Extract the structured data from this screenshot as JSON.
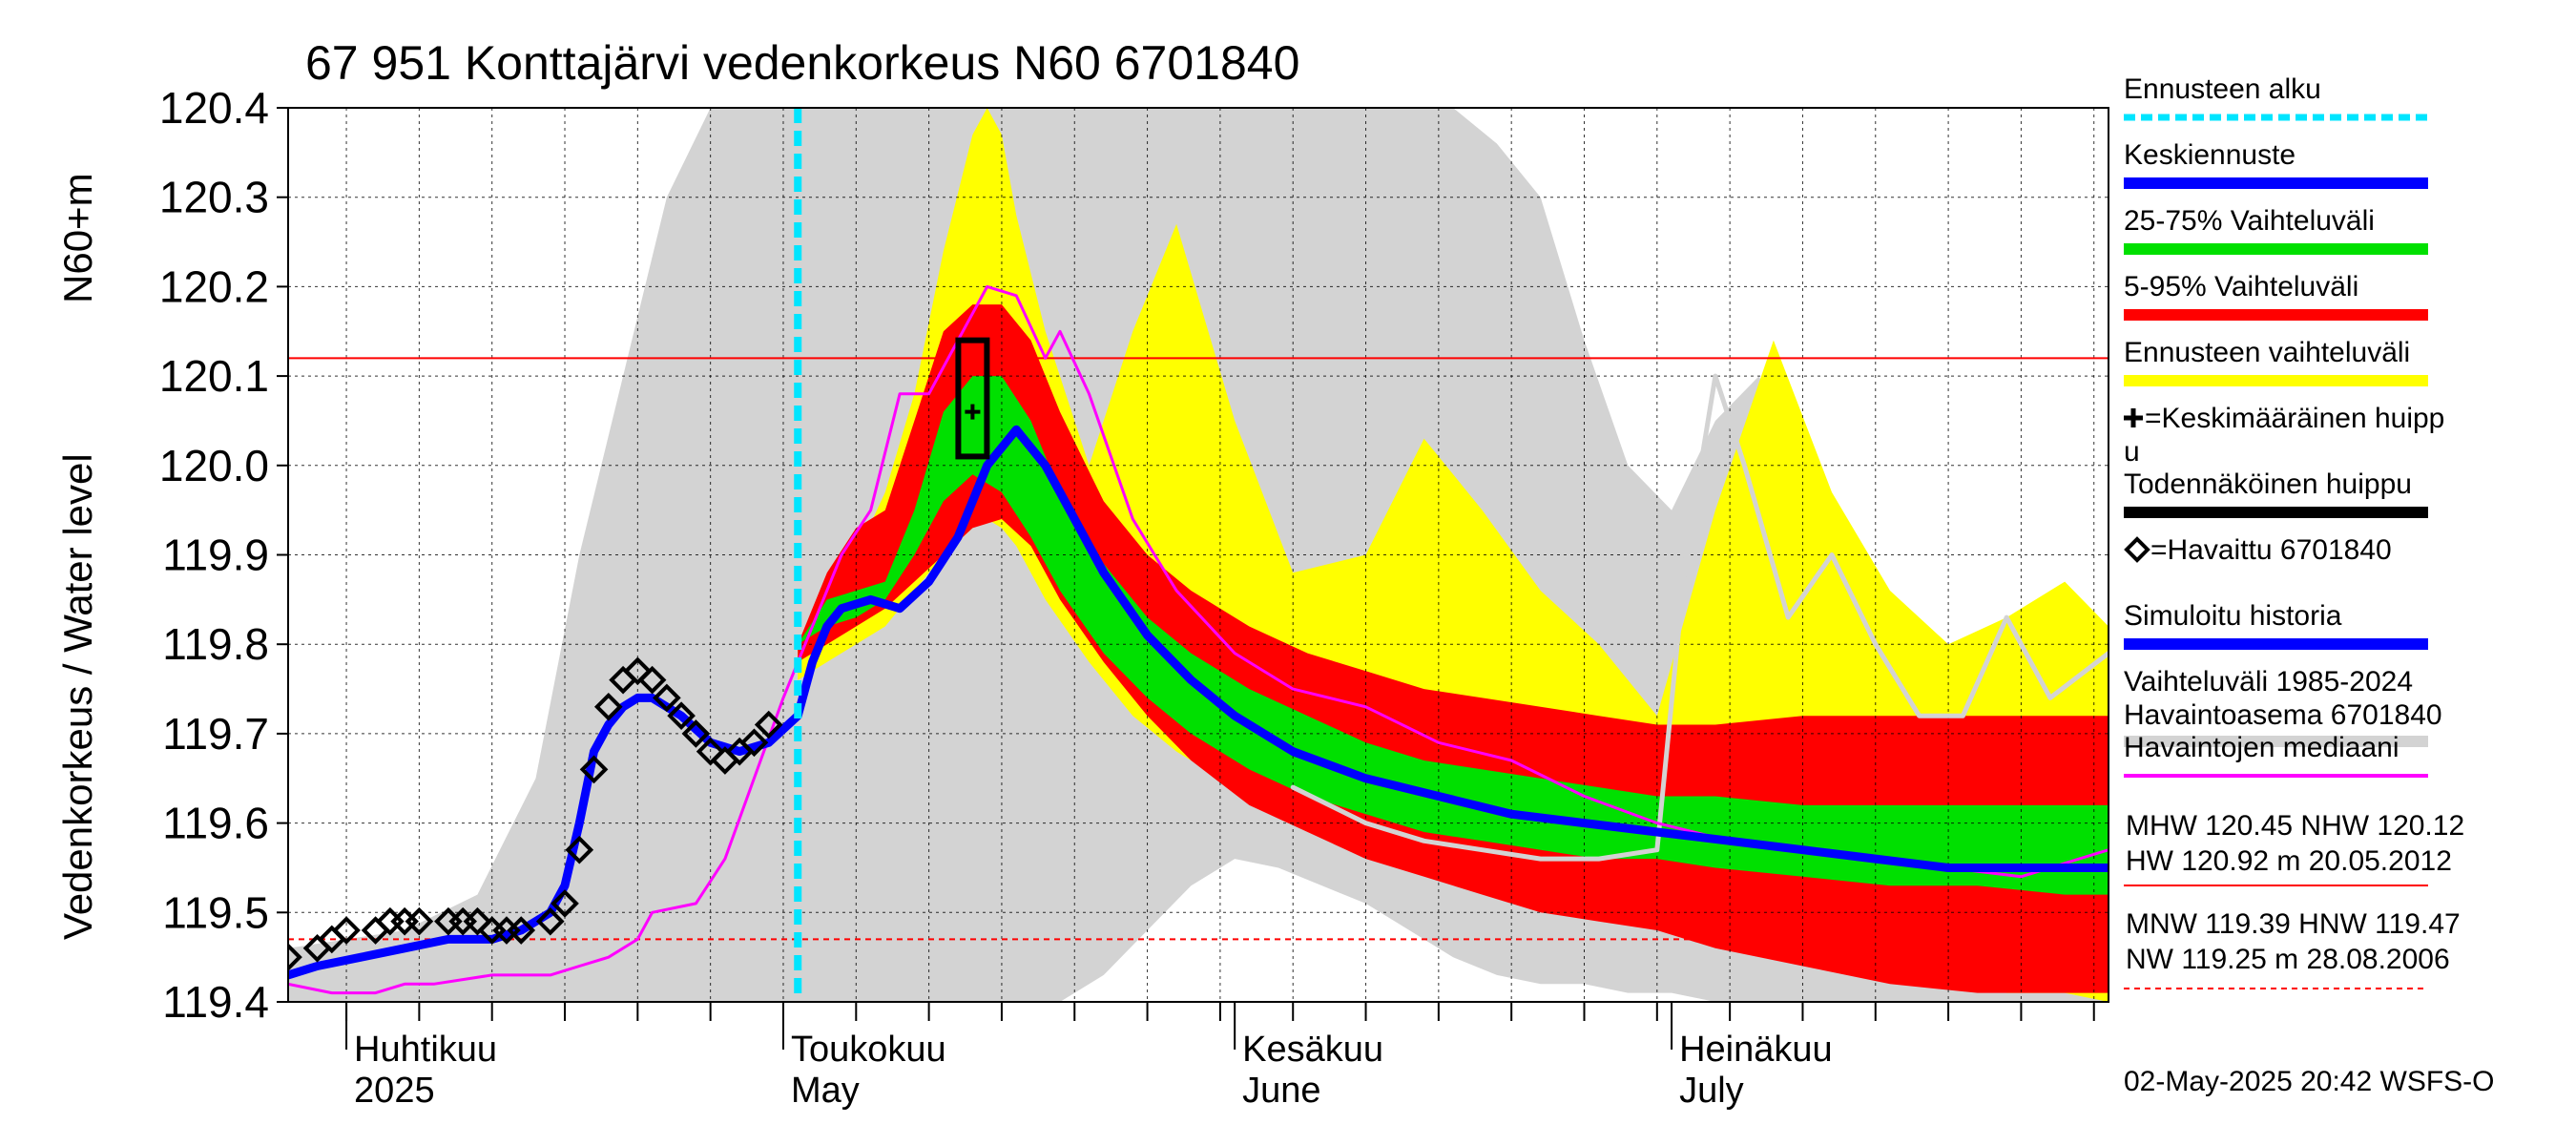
{
  "chart_data": {
    "type": "area",
    "title": "67 951 Konttajärvi vedenkorkeus N60 6701840",
    "ylabel_fi": "Vedenkorkeus / Water level",
    "ylabel_unit": "N60+m",
    "ylim": [
      119.4,
      120.4
    ],
    "y_ticks": [
      "119.4",
      "119.5",
      "119.6",
      "119.7",
      "119.8",
      "119.9",
      "120.0",
      "120.1",
      "120.2",
      "120.3",
      "120.4"
    ],
    "x_range": [
      "2025-03-28",
      "2025-07-31"
    ],
    "month_labels": [
      {
        "date": "2025-04-01",
        "fi": "Huhtikuu",
        "en": "2025"
      },
      {
        "date": "2025-05-01",
        "fi": "Toukokuu",
        "en": "May"
      },
      {
        "date": "2025-06-01",
        "fi": "Kesäkuu",
        "en": "June"
      },
      {
        "date": "2025-07-01",
        "fi": "Heinäkuu",
        "en": "July"
      }
    ],
    "grid": true,
    "forecast_start": "2025-05-02",
    "hline_nhw": 120.12,
    "hline_hnw": 119.47,
    "history_band": {
      "name": "Vaihteluväli 1985-2024 Havaintoasema 6701840",
      "color": "#d3d3d3",
      "x": [
        "2025-03-28",
        "2025-04-05",
        "2025-04-10",
        "2025-04-14",
        "2025-04-17",
        "2025-04-20",
        "2025-04-23",
        "2025-04-26",
        "2025-04-28",
        "2025-04-30",
        "2025-05-02",
        "2025-05-05",
        "2025-05-08",
        "2025-05-11",
        "2025-05-14",
        "2025-05-17",
        "2025-05-20",
        "2025-05-23",
        "2025-05-26",
        "2025-05-29",
        "2025-06-01",
        "2025-06-04",
        "2025-06-07",
        "2025-06-10",
        "2025-06-13",
        "2025-06-16",
        "2025-06-19",
        "2025-06-22",
        "2025-06-25",
        "2025-06-28",
        "2025-07-01",
        "2025-07-04",
        "2025-07-07",
        "2025-07-10",
        "2025-07-13",
        "2025-07-16",
        "2025-07-19",
        "2025-07-22",
        "2025-07-25",
        "2025-07-28",
        "2025-07-31"
      ],
      "low": [
        119.4,
        119.4,
        119.4,
        119.4,
        119.4,
        119.4,
        119.4,
        119.4,
        119.4,
        119.4,
        119.4,
        119.4,
        119.4,
        119.4,
        119.4,
        119.4,
        119.4,
        119.43,
        119.48,
        119.53,
        119.56,
        119.55,
        119.53,
        119.51,
        119.48,
        119.45,
        119.43,
        119.42,
        119.42,
        119.41,
        119.41,
        119.4,
        119.4,
        119.4,
        119.4,
        119.4,
        119.4,
        119.4,
        119.4,
        119.4,
        119.4
      ],
      "high": [
        119.46,
        119.48,
        119.52,
        119.65,
        119.9,
        120.1,
        120.3,
        120.4,
        120.4,
        120.4,
        120.4,
        120.4,
        120.4,
        120.4,
        120.4,
        120.4,
        120.4,
        120.4,
        120.4,
        120.4,
        120.4,
        120.4,
        120.4,
        120.4,
        120.4,
        120.4,
        120.36,
        120.3,
        120.14,
        120.0,
        119.95,
        120.05,
        120.1,
        119.98,
        119.93,
        119.85,
        119.8,
        119.75,
        119.73,
        119.76,
        119.78
      ]
    },
    "forecast_band": {
      "name": "Ennusteen vaihteluväli",
      "color": "#ffff00",
      "x": [
        "2025-05-02",
        "2025-05-04",
        "2025-05-06",
        "2025-05-08",
        "2025-05-10",
        "2025-05-12",
        "2025-05-14",
        "2025-05-15",
        "2025-05-16",
        "2025-05-17",
        "2025-05-19",
        "2025-05-22",
        "2025-05-25",
        "2025-05-28",
        "2025-06-01",
        "2025-06-05",
        "2025-06-10",
        "2025-06-14",
        "2025-06-18",
        "2025-06-22",
        "2025-06-26",
        "2025-06-30",
        "2025-07-04",
        "2025-07-08",
        "2025-07-12",
        "2025-07-16",
        "2025-07-20",
        "2025-07-24",
        "2025-07-28",
        "2025-07-31"
      ],
      "low": [
        119.76,
        119.78,
        119.8,
        119.82,
        119.86,
        119.9,
        119.93,
        119.94,
        119.93,
        119.91,
        119.85,
        119.78,
        119.72,
        119.68,
        119.64,
        119.6,
        119.57,
        119.55,
        119.53,
        119.52,
        119.51,
        119.49,
        119.48,
        119.46,
        119.45,
        119.43,
        119.42,
        119.41,
        119.41,
        119.4
      ],
      "high": [
        119.8,
        119.86,
        119.9,
        119.97,
        120.08,
        120.24,
        120.37,
        120.4,
        120.37,
        120.28,
        120.15,
        120.0,
        120.15,
        120.27,
        120.05,
        119.88,
        119.9,
        120.03,
        119.95,
        119.86,
        119.8,
        119.72,
        119.95,
        120.14,
        119.97,
        119.86,
        119.8,
        119.83,
        119.87,
        119.82
      ]
    },
    "band_5_95": {
      "name": "5-95% Vaihteluväli",
      "color": "#ff0000",
      "x": [
        "2025-05-02",
        "2025-05-04",
        "2025-05-06",
        "2025-05-08",
        "2025-05-10",
        "2025-05-12",
        "2025-05-14",
        "2025-05-16",
        "2025-05-18",
        "2025-05-20",
        "2025-05-23",
        "2025-05-26",
        "2025-05-29",
        "2025-06-02",
        "2025-06-06",
        "2025-06-10",
        "2025-06-14",
        "2025-06-18",
        "2025-06-22",
        "2025-06-26",
        "2025-06-30",
        "2025-07-04",
        "2025-07-10",
        "2025-07-16",
        "2025-07-22",
        "2025-07-28",
        "2025-07-31"
      ],
      "low": [
        119.78,
        119.8,
        119.82,
        119.84,
        119.87,
        119.9,
        119.93,
        119.94,
        119.91,
        119.85,
        119.78,
        119.72,
        119.67,
        119.62,
        119.59,
        119.56,
        119.54,
        119.52,
        119.5,
        119.49,
        119.48,
        119.46,
        119.44,
        119.42,
        119.41,
        119.41,
        119.41
      ],
      "high": [
        119.8,
        119.88,
        119.93,
        119.95,
        120.05,
        120.15,
        120.18,
        120.18,
        120.14,
        120.06,
        119.96,
        119.9,
        119.86,
        119.82,
        119.79,
        119.77,
        119.75,
        119.74,
        119.73,
        119.72,
        119.71,
        119.71,
        119.72,
        119.72,
        119.72,
        119.72,
        119.72
      ]
    },
    "band_25_75": {
      "name": "25-75% Vaihteluväli",
      "color": "#00e000",
      "x": [
        "2025-05-02",
        "2025-05-04",
        "2025-05-06",
        "2025-05-08",
        "2025-05-10",
        "2025-05-12",
        "2025-05-14",
        "2025-05-16",
        "2025-05-18",
        "2025-05-20",
        "2025-05-23",
        "2025-05-26",
        "2025-05-29",
        "2025-06-02",
        "2025-06-06",
        "2025-06-10",
        "2025-06-14",
        "2025-06-18",
        "2025-06-22",
        "2025-06-26",
        "2025-06-30",
        "2025-07-04",
        "2025-07-10",
        "2025-07-16",
        "2025-07-22",
        "2025-07-28",
        "2025-07-31"
      ],
      "low": [
        119.8,
        119.82,
        119.83,
        119.85,
        119.9,
        119.96,
        119.99,
        119.97,
        119.92,
        119.86,
        119.79,
        119.74,
        119.7,
        119.66,
        119.63,
        119.61,
        119.59,
        119.58,
        119.57,
        119.56,
        119.56,
        119.55,
        119.54,
        119.53,
        119.53,
        119.52,
        119.52
      ],
      "high": [
        119.8,
        119.85,
        119.86,
        119.87,
        119.95,
        120.06,
        120.1,
        120.1,
        120.05,
        119.97,
        119.89,
        119.83,
        119.79,
        119.75,
        119.72,
        119.69,
        119.67,
        119.66,
        119.65,
        119.64,
        119.63,
        119.63,
        119.62,
        119.62,
        119.62,
        119.62,
        119.62
      ]
    },
    "series": [
      {
        "name": "Keskiennuste",
        "color": "#0000ff",
        "x": [
          "2025-03-28",
          "2025-03-30",
          "2025-04-02",
          "2025-04-05",
          "2025-04-08",
          "2025-04-11",
          "2025-04-13",
          "2025-04-15",
          "2025-04-16",
          "2025-04-17",
          "2025-04-18",
          "2025-04-19",
          "2025-04-20",
          "2025-04-21",
          "2025-04-22",
          "2025-04-24",
          "2025-04-26",
          "2025-04-28",
          "2025-04-30",
          "2025-05-02",
          "2025-05-03",
          "2025-05-04",
          "2025-05-05",
          "2025-05-07",
          "2025-05-09",
          "2025-05-11",
          "2025-05-13",
          "2025-05-15",
          "2025-05-17",
          "2025-05-19",
          "2025-05-21",
          "2025-05-23",
          "2025-05-26",
          "2025-05-29",
          "2025-06-01",
          "2025-06-05",
          "2025-06-10",
          "2025-06-15",
          "2025-06-20",
          "2025-06-25",
          "2025-06-30",
          "2025-07-05",
          "2025-07-10",
          "2025-07-15",
          "2025-07-20",
          "2025-07-25",
          "2025-07-31"
        ],
        "values": [
          119.43,
          119.44,
          119.45,
          119.46,
          119.47,
          119.47,
          119.48,
          119.5,
          119.53,
          119.6,
          119.68,
          119.71,
          119.73,
          119.74,
          119.74,
          119.72,
          119.69,
          119.68,
          119.69,
          119.72,
          119.78,
          119.82,
          119.84,
          119.85,
          119.84,
          119.87,
          119.92,
          120.0,
          120.04,
          120.0,
          119.94,
          119.88,
          119.81,
          119.76,
          119.72,
          119.68,
          119.65,
          119.63,
          119.61,
          119.6,
          119.59,
          119.58,
          119.57,
          119.56,
          119.55,
          119.55,
          119.55
        ]
      },
      {
        "name": "Havaintojen mediaani",
        "color": "#ff00ff",
        "x": [
          "2025-03-28",
          "2025-03-31",
          "2025-04-03",
          "2025-04-05",
          "2025-04-07",
          "2025-04-11",
          "2025-04-15",
          "2025-04-17",
          "2025-04-19",
          "2025-04-21",
          "2025-04-22",
          "2025-04-25",
          "2025-04-27",
          "2025-04-29",
          "2025-05-01",
          "2025-05-03",
          "2025-05-05",
          "2025-05-07",
          "2025-05-09",
          "2025-05-11",
          "2025-05-13",
          "2025-05-15",
          "2025-05-17",
          "2025-05-19",
          "2025-05-20",
          "2025-05-22",
          "2025-05-25",
          "2025-05-28",
          "2025-06-01",
          "2025-06-05",
          "2025-06-10",
          "2025-06-15",
          "2025-06-20",
          "2025-06-25",
          "2025-06-30",
          "2025-07-05",
          "2025-07-10",
          "2025-07-15",
          "2025-07-20",
          "2025-07-25",
          "2025-07-31"
        ],
        "values": [
          119.42,
          119.41,
          119.41,
          119.42,
          119.42,
          119.43,
          119.43,
          119.44,
          119.45,
          119.47,
          119.5,
          119.51,
          119.56,
          119.65,
          119.74,
          119.82,
          119.9,
          119.95,
          120.08,
          120.08,
          120.14,
          120.2,
          120.19,
          120.12,
          120.15,
          120.08,
          119.94,
          119.86,
          119.79,
          119.75,
          119.73,
          119.69,
          119.67,
          119.63,
          119.6,
          119.58,
          119.57,
          119.56,
          119.55,
          119.54,
          119.57
        ]
      },
      {
        "name": "Vaihteluväli 1985-2024 Havaintoasema 6701840 (mediaani)",
        "color": "#d3d3d3",
        "x": [
          "2025-06-05",
          "2025-06-10",
          "2025-06-14",
          "2025-06-18",
          "2025-06-22",
          "2025-06-26",
          "2025-06-30",
          "2025-07-02",
          "2025-07-04",
          "2025-07-06",
          "2025-07-09",
          "2025-07-12",
          "2025-07-15",
          "2025-07-18",
          "2025-07-21",
          "2025-07-24",
          "2025-07-27",
          "2025-07-31"
        ],
        "values": [
          119.64,
          119.6,
          119.58,
          119.57,
          119.56,
          119.56,
          119.57,
          119.9,
          120.1,
          120.0,
          119.83,
          119.9,
          119.8,
          119.72,
          119.72,
          119.83,
          119.74,
          119.79
        ]
      }
    ],
    "observed": {
      "name": "=Havaittu 6701840",
      "x": [
        "2025-03-28",
        "2025-03-30",
        "2025-03-31",
        "2025-04-01",
        "2025-04-03",
        "2025-04-04",
        "2025-04-05",
        "2025-04-06",
        "2025-04-08",
        "2025-04-09",
        "2025-04-10",
        "2025-04-11",
        "2025-04-12",
        "2025-04-13",
        "2025-04-15",
        "2025-04-16",
        "2025-04-17",
        "2025-04-18",
        "2025-04-19",
        "2025-04-20",
        "2025-04-21",
        "2025-04-22",
        "2025-04-23",
        "2025-04-24",
        "2025-04-25",
        "2025-04-26",
        "2025-04-27",
        "2025-04-28",
        "2025-04-29",
        "2025-04-30"
      ],
      "values": [
        119.45,
        119.46,
        119.47,
        119.48,
        119.48,
        119.49,
        119.49,
        119.49,
        119.49,
        119.49,
        119.49,
        119.48,
        119.48,
        119.48,
        119.49,
        119.51,
        119.57,
        119.66,
        119.73,
        119.76,
        119.77,
        119.76,
        119.74,
        119.72,
        119.7,
        119.68,
        119.67,
        119.68,
        119.69,
        119.71
      ]
    },
    "peak_box": {
      "x": "2025-05-14",
      "low": 120.01,
      "high": 120.14,
      "mean": 120.06
    },
    "legend": {
      "placement": "right",
      "items": [
        {
          "label": "Ennusteen alku",
          "color": "#00e5ff",
          "style": "dashed"
        },
        {
          "label": "Keskiennuste",
          "color": "#0000ff",
          "style": "thick"
        },
        {
          "label": "25-75% Vaihteluväli",
          "color": "#00e000",
          "style": "thick"
        },
        {
          "label": "5-95% Vaihteluväli",
          "color": "#ff0000",
          "style": "thick"
        },
        {
          "label": "Ennusteen vaihteluväli",
          "color": "#ffff00",
          "style": "thick"
        },
        {
          "label": "=Keskimääräinen huipp",
          "label2": "u",
          "color": "#000000",
          "style": "plus"
        },
        {
          "label": "Todennäköinen huippu",
          "color": "#000000",
          "style": "thick"
        },
        {
          "label": "=Havaittu 6701840",
          "color": "#000000",
          "style": "diamond"
        },
        {
          "label": "Simuloitu historia",
          "color": "#0000ff",
          "style": "thick"
        },
        {
          "label": "Vaihteluväli 1985-2024",
          "label2": " Havaintoasema 6701840",
          "color": "#d3d3d3",
          "style": "thick"
        },
        {
          "label": "Havaintojen mediaani",
          "color": "#ff00ff",
          "style": "thin"
        }
      ]
    },
    "stats": {
      "high1": "MHW 120.45 NHW 120.12",
      "high2": "HW 120.92 m 20.05.2012",
      "low1": "MNW 119.39 HNW 119.47",
      "low2": "NW 119.25 m 28.08.2006"
    },
    "footer": "02-May-2025 20:42 WSFS-O"
  }
}
